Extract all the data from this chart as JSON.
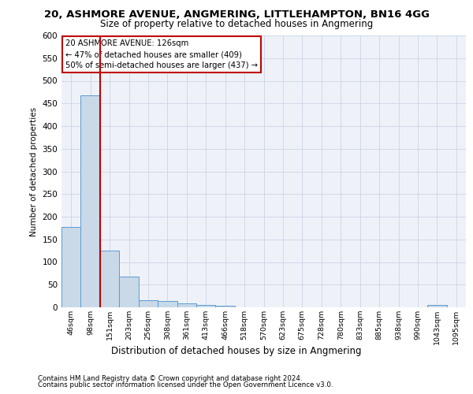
{
  "title1": "20, ASHMORE AVENUE, ANGMERING, LITTLEHAMPTON, BN16 4GG",
  "title2": "Size of property relative to detached houses in Angmering",
  "xlabel": "Distribution of detached houses by size in Angmering",
  "ylabel": "Number of detached properties",
  "bin_labels": [
    "46sqm",
    "98sqm",
    "151sqm",
    "203sqm",
    "256sqm",
    "308sqm",
    "361sqm",
    "413sqm",
    "466sqm",
    "518sqm",
    "570sqm",
    "623sqm",
    "675sqm",
    "728sqm",
    "780sqm",
    "833sqm",
    "885sqm",
    "938sqm",
    "990sqm",
    "1043sqm",
    "1095sqm"
  ],
  "bar_heights": [
    178,
    468,
    126,
    68,
    16,
    14,
    8,
    6,
    4,
    0,
    0,
    0,
    0,
    0,
    0,
    0,
    0,
    0,
    0,
    5,
    0
  ],
  "bar_color": "#c9d9e8",
  "bar_edgecolor": "#5b9bd5",
  "grid_color": "#d0d8e8",
  "bg_color": "#eef2f8",
  "vline_x_index": 1.5,
  "vline_color": "#c00000",
  "annotation_line1": "20 ASHMORE AVENUE: 126sqm",
  "annotation_line2": "← 47% of detached houses are smaller (409)",
  "annotation_line3": "50% of semi-detached houses are larger (437) →",
  "annotation_box_color": "#c00000",
  "ylim": [
    0,
    600
  ],
  "yticks": [
    0,
    50,
    100,
    150,
    200,
    250,
    300,
    350,
    400,
    450,
    500,
    550,
    600
  ],
  "footer1": "Contains HM Land Registry data © Crown copyright and database right 2024.",
  "footer2": "Contains public sector information licensed under the Open Government Licence v3.0."
}
